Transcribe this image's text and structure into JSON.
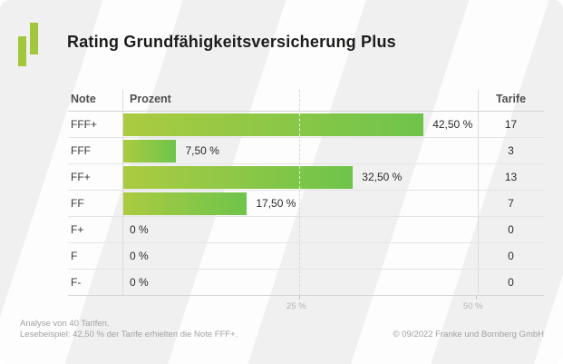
{
  "header": {
    "title": "Rating Grundfähigkeitsversicherung Plus",
    "logo": "franke-bornberg-logo",
    "accent_green": "#a2c73d"
  },
  "table": {
    "col_note": "Note",
    "col_prozent": "Prozent",
    "col_tarife": "Tarife"
  },
  "chart_data": {
    "type": "bar",
    "orientation": "horizontal",
    "title": "Rating Grundfähigkeitsversicherung Plus",
    "categories": [
      "FFF+",
      "FFF",
      "FF+",
      "FF",
      "F+",
      "F",
      "F-"
    ],
    "values": [
      42.5,
      7.5,
      32.5,
      17.5,
      0,
      0,
      0
    ],
    "value_labels": [
      "42,50 %",
      "7,50 %",
      "32,50 %",
      "17,50 %",
      "0 %",
      "0 %",
      "0 %"
    ],
    "series": [
      {
        "name": "Prozent",
        "values": [
          42.5,
          7.5,
          32.5,
          17.5,
          0,
          0,
          0
        ]
      },
      {
        "name": "Tarife",
        "values": [
          17,
          3,
          13,
          7,
          0,
          0,
          0
        ]
      }
    ],
    "tarife_counts": [
      "17",
      "3",
      "13",
      "7",
      "0",
      "0",
      "0"
    ],
    "xlabel": "Prozent",
    "xlim": [
      0,
      50.3
    ],
    "ticks": [
      {
        "value": 25,
        "label": "25 %"
      },
      {
        "value": 50,
        "label": "50 %"
      }
    ],
    "grid": "dashed-vertical",
    "legend": "none",
    "bar_gradient": [
      "#abcb41",
      "#6ec44b"
    ]
  },
  "footer": {
    "note_line1": "Analyse von 40 Tarifen.",
    "note_line2": "Lesebeispiel: 42,50 % der Tarife erhielten die Note FFF+.",
    "copyright": "© 09/2022 Franke und Bornberg GmbH"
  }
}
